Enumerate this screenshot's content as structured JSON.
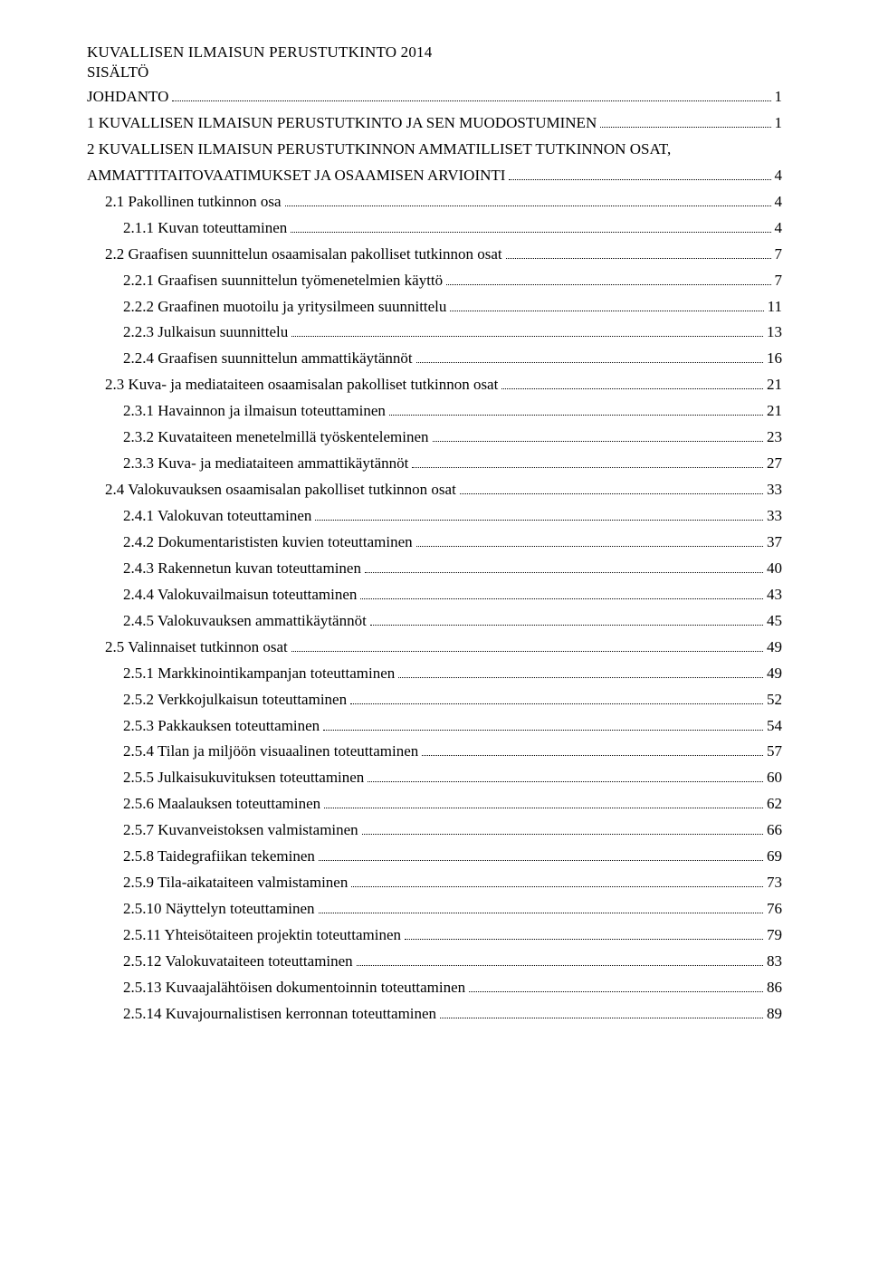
{
  "doc_title": "KUVALLISEN ILMAISUN PERUSTUTKINTO 2014",
  "sisalto_label": "SISÄLTÖ",
  "toc": [
    {
      "label": "JOHDANTO",
      "page": "1",
      "indent": 0
    },
    {
      "label": "1 KUVALLISEN ILMAISUN PERUSTUTKINTO JA SEN MUODOSTUMINEN",
      "page": "1",
      "indent": 0
    },
    {
      "label": "2 KUVALLISEN ILMAISUN PERUSTUTKINNON AMMATILLISET TUTKINNON OSAT, AMMATTITAITOVAATIMUKSET JA OSAAMISEN ARVIOINTI",
      "page": "4",
      "indent": 0,
      "wrap": true
    },
    {
      "label": "2.1 Pakollinen tutkinnon osa",
      "page": "4",
      "indent": 1
    },
    {
      "label": "2.1.1 Kuvan toteuttaminen",
      "page": "4",
      "indent": 2
    },
    {
      "label": "2.2 Graafisen suunnittelun osaamisalan pakolliset tutkinnon osat",
      "page": "7",
      "indent": 1
    },
    {
      "label": "2.2.1 Graafisen suunnittelun työmenetelmien käyttö",
      "page": "7",
      "indent": 2
    },
    {
      "label": "2.2.2 Graafinen muotoilu ja yritysilmeen suunnittelu",
      "page": "11",
      "indent": 2
    },
    {
      "label": "2.2.3 Julkaisun suunnittelu",
      "page": "13",
      "indent": 2
    },
    {
      "label": "2.2.4 Graafisen suunnittelun ammattikäytännöt",
      "page": "16",
      "indent": 2
    },
    {
      "label": "2.3 Kuva- ja mediataiteen osaamisalan pakolliset tutkinnon osat",
      "page": "21",
      "indent": 1
    },
    {
      "label": "2.3.1 Havainnon ja ilmaisun toteuttaminen",
      "page": "21",
      "indent": 2
    },
    {
      "label": "2.3.2 Kuvataiteen menetelmillä työskenteleminen",
      "page": "23",
      "indent": 2
    },
    {
      "label": "2.3.3 Kuva- ja mediataiteen ammattikäytännöt",
      "page": "27",
      "indent": 2
    },
    {
      "label": "2.4 Valokuvauksen osaamisalan pakolliset tutkinnon osat",
      "page": "33",
      "indent": 1
    },
    {
      "label": "2.4.1 Valokuvan toteuttaminen",
      "page": "33",
      "indent": 2
    },
    {
      "label": "2.4.2 Dokumentarististen kuvien toteuttaminen",
      "page": "37",
      "indent": 2
    },
    {
      "label": "2.4.3 Rakennetun kuvan toteuttaminen",
      "page": "40",
      "indent": 2
    },
    {
      "label": "2.4.4 Valokuvailmaisun toteuttaminen",
      "page": "43",
      "indent": 2
    },
    {
      "label": "2.4.5 Valokuvauksen ammattikäytännöt",
      "page": "45",
      "indent": 2
    },
    {
      "label": "2.5 Valinnaiset tutkinnon osat",
      "page": "49",
      "indent": 1
    },
    {
      "label": "2.5.1 Markkinointikampanjan toteuttaminen",
      "page": "49",
      "indent": 2
    },
    {
      "label": "2.5.2 Verkkojulkaisun toteuttaminen",
      "page": "52",
      "indent": 2
    },
    {
      "label": "2.5.3 Pakkauksen toteuttaminen",
      "page": "54",
      "indent": 2
    },
    {
      "label": "2.5.4 Tilan ja miljöön visuaalinen toteuttaminen",
      "page": "57",
      "indent": 2
    },
    {
      "label": "2.5.5 Julkaisukuvituksen toteuttaminen",
      "page": "60",
      "indent": 2
    },
    {
      "label": "2.5.6 Maalauksen toteuttaminen",
      "page": "62",
      "indent": 2
    },
    {
      "label": "2.5.7 Kuvanveistoksen valmistaminen",
      "page": "66",
      "indent": 2
    },
    {
      "label": "2.5.8 Taidegrafiikan tekeminen",
      "page": "69",
      "indent": 2
    },
    {
      "label": "2.5.9 Tila-aikataiteen valmistaminen",
      "page": "73",
      "indent": 2
    },
    {
      "label": "2.5.10 Näyttelyn toteuttaminen",
      "page": "76",
      "indent": 2
    },
    {
      "label": "2.5.11 Yhteisötaiteen projektin toteuttaminen",
      "page": "79",
      "indent": 2
    },
    {
      "label": "2.5.12 Valokuvataiteen toteuttaminen",
      "page": "83",
      "indent": 2
    },
    {
      "label": "2.5.13 Kuvaajalähtöisen dokumentoinnin toteuttaminen",
      "page": "86",
      "indent": 2
    },
    {
      "label": "2.5.14 Kuvajournalistisen kerronnan toteuttaminen",
      "page": "89",
      "indent": 2
    }
  ]
}
